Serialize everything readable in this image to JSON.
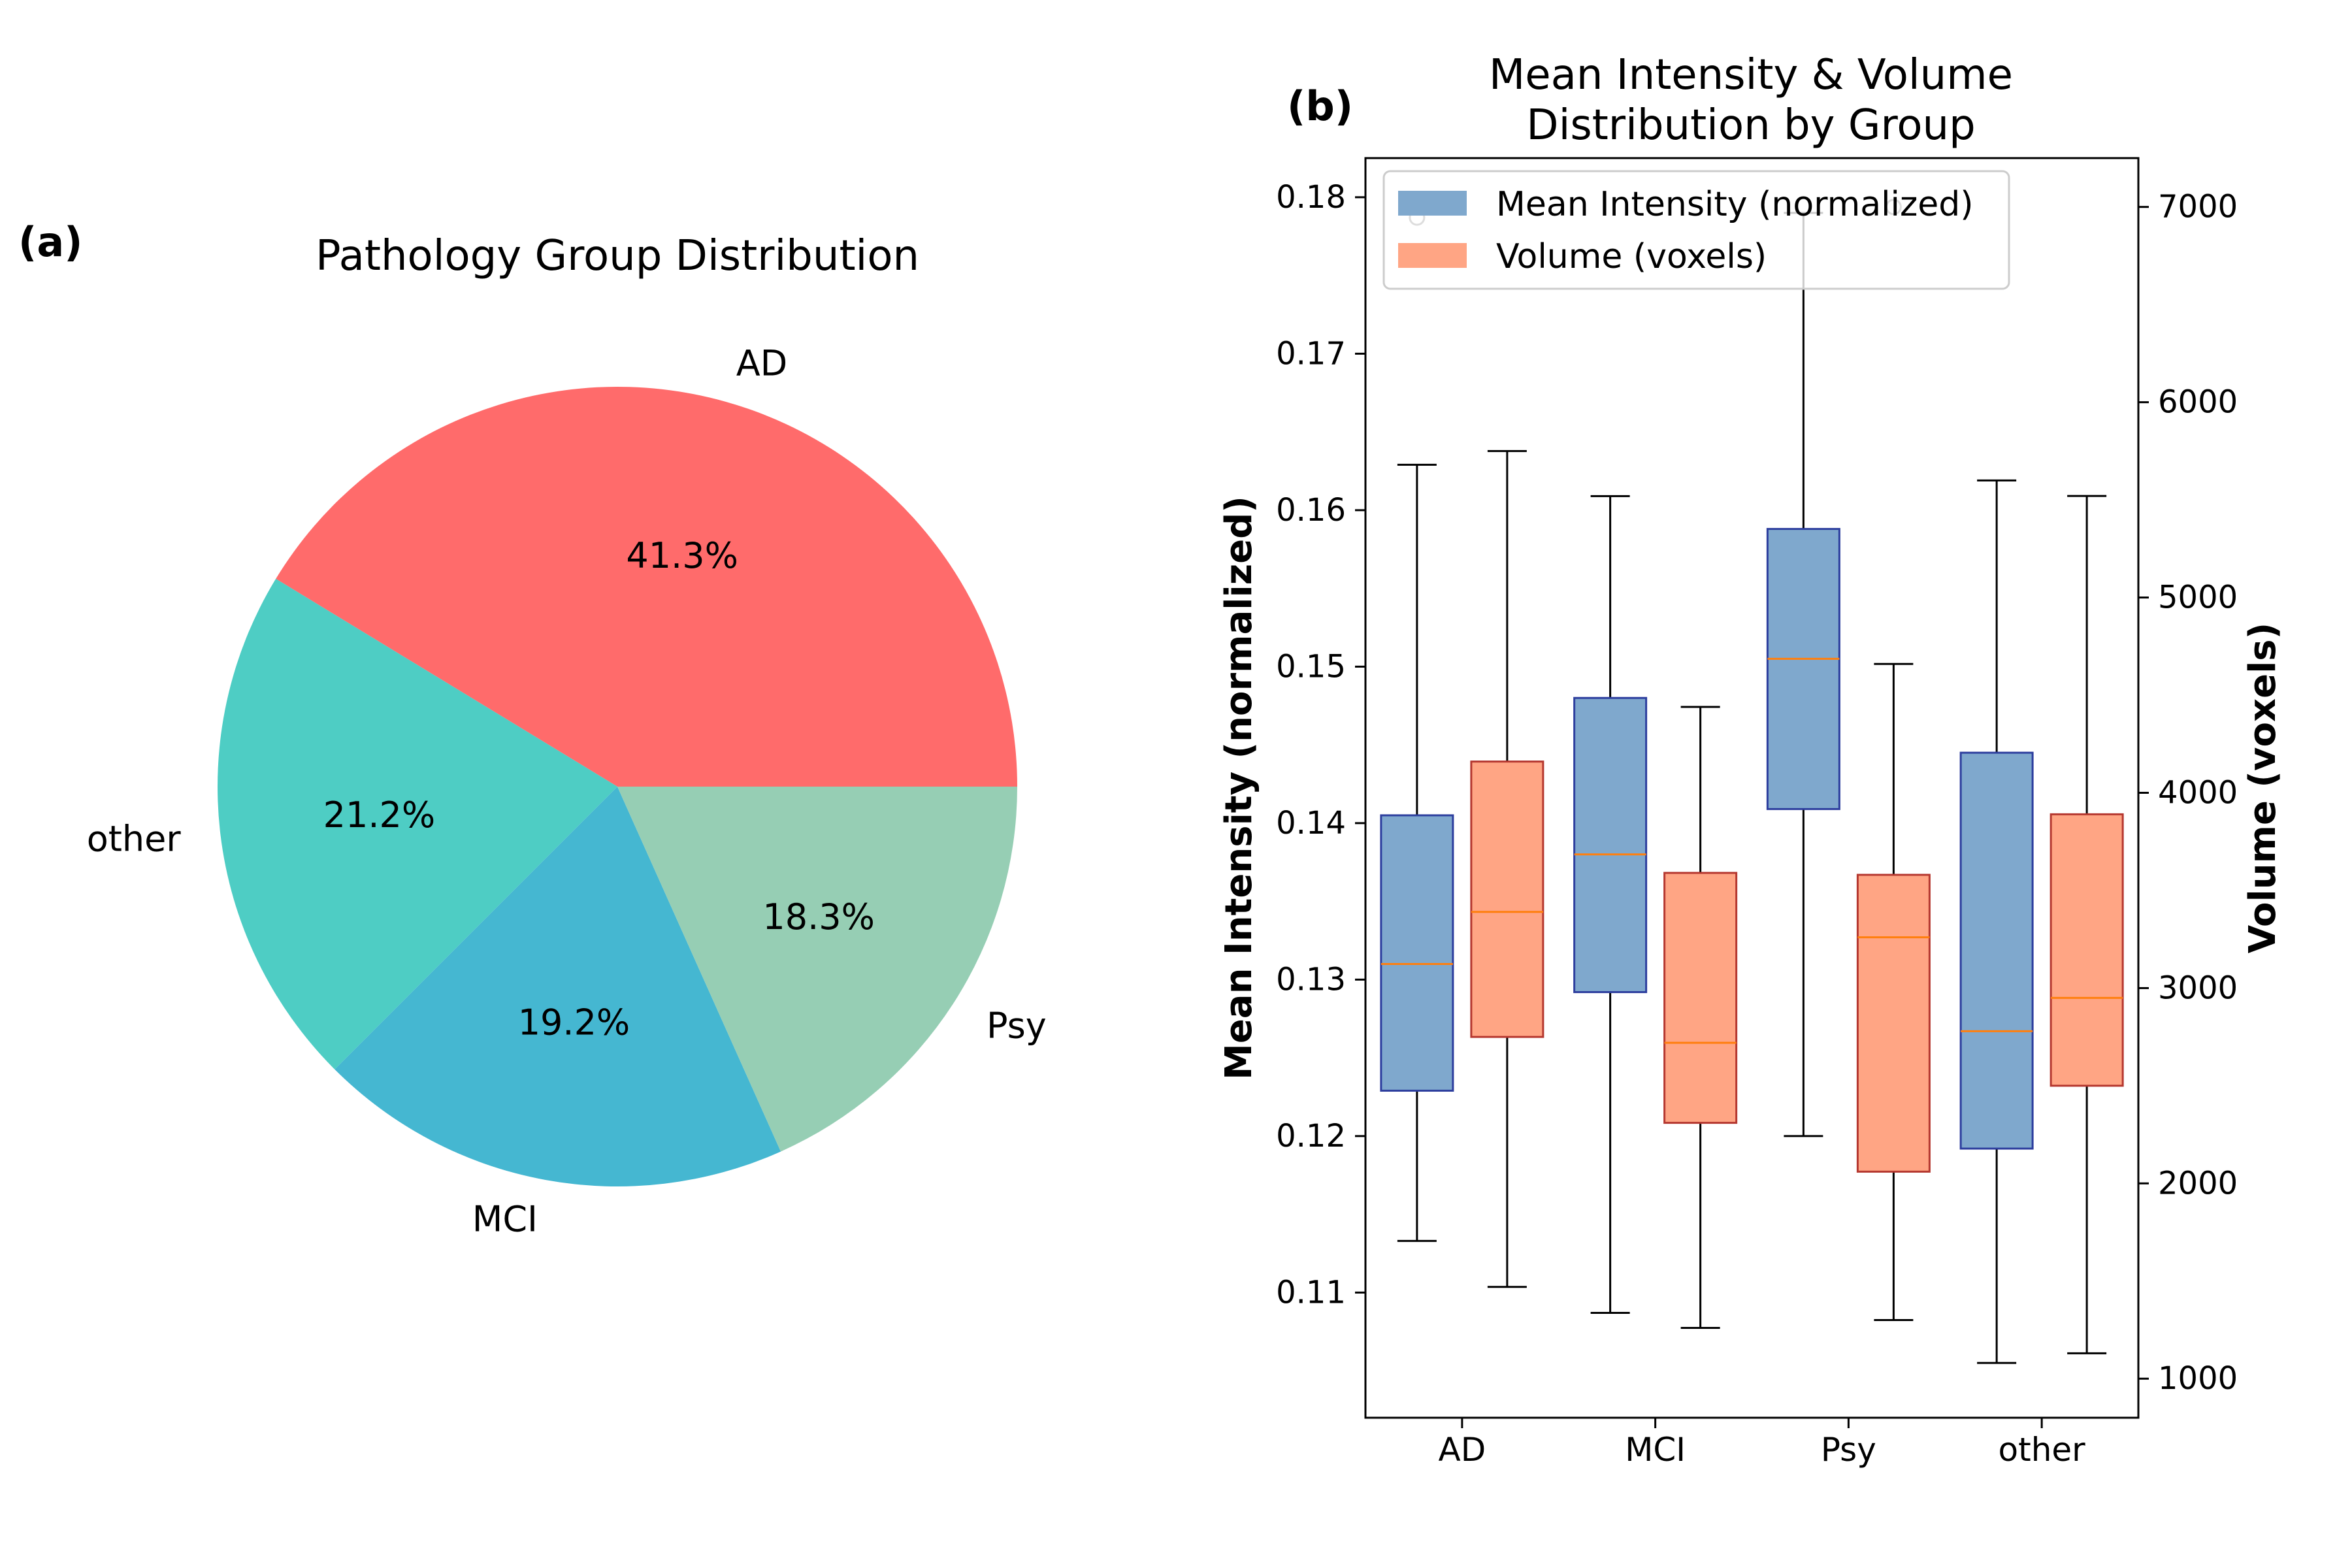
{
  "colors": {
    "pie": [
      "#ff6b6b",
      "#4ecdc4",
      "#45b7d1",
      "#96ceb4"
    ],
    "intensity_fill": "#7fa8cd",
    "intensity_edge": "#2d3e9e",
    "volume_fill": "#ffa584",
    "volume_edge": "#b5372f",
    "median": "#ff7f0e",
    "left_axis": "#4682b4",
    "right_axis": "#ff7f50"
  },
  "chart_data": [
    {
      "panel_label": "(a)",
      "type": "pie",
      "title": "Pathology Group Distribution",
      "labels": [
        "AD",
        "other",
        "MCI",
        "Psy"
      ],
      "values": [
        41.3,
        21.2,
        19.2,
        18.3
      ],
      "pct_labels": [
        "41.3%",
        "21.2%",
        "19.2%",
        "18.3%"
      ]
    },
    {
      "panel_label": "(b)",
      "type": "box",
      "title_lines": [
        "Mean Intensity & Volume",
        "Distribution by Group"
      ],
      "categories": [
        "AD",
        "MCI",
        "Psy",
        "other"
      ],
      "ylabel": "Mean Intensity (normalized)",
      "y2label": "Volume (voxels)",
      "ylim": [
        0.102,
        0.1825
      ],
      "y2lim": [
        800,
        7250
      ],
      "yticks": [
        0.11,
        0.12,
        0.13,
        0.14,
        0.15,
        0.16,
        0.17,
        0.18
      ],
      "yticklabels": [
        "0.11",
        "0.12",
        "0.13",
        "0.14",
        "0.15",
        "0.16",
        "0.17",
        "0.18"
      ],
      "y2ticks": [
        1000,
        2000,
        3000,
        4000,
        5000,
        6000,
        7000
      ],
      "y2ticklabels": [
        "1000",
        "2000",
        "3000",
        "4000",
        "5000",
        "6000",
        "7000"
      ],
      "legend": [
        "Mean Intensity (normalized)",
        "Volume (voxels)"
      ],
      "legend_position": "upper-left",
      "series": [
        {
          "name": "Mean Intensity (normalized)",
          "axis": "left",
          "boxes": [
            {
              "whisker_low": 0.1133,
              "q1": 0.1229,
              "median": 0.131,
              "q3": 0.1405,
              "whisker_high": 0.1629,
              "outliers": [
                0.1787
              ]
            },
            {
              "whisker_low": 0.1087,
              "q1": 0.1292,
              "median": 0.138,
              "q3": 0.148,
              "whisker_high": 0.1609,
              "outliers": []
            },
            {
              "whisker_low": 0.12,
              "q1": 0.1409,
              "median": 0.1505,
              "q3": 0.1588,
              "whisker_high": 0.179,
              "outliers": []
            },
            {
              "whisker_low": 0.1055,
              "q1": 0.1192,
              "median": 0.1267,
              "q3": 0.1445,
              "whisker_high": 0.1619,
              "outliers": []
            }
          ]
        },
        {
          "name": "Volume (voxels)",
          "axis": "right",
          "boxes": [
            {
              "whisker_low": 1470,
              "q1": 2750,
              "median": 3390,
              "q3": 4160,
              "whisker_high": 5750,
              "outliers": []
            },
            {
              "whisker_low": 1260,
              "q1": 2310,
              "median": 2720,
              "q3": 3590,
              "whisker_high": 4440,
              "outliers": []
            },
            {
              "whisker_low": 1300,
              "q1": 2060,
              "median": 3260,
              "q3": 3580,
              "whisker_high": 4660,
              "outliers": [
                7000
              ]
            },
            {
              "whisker_low": 1130,
              "q1": 2500,
              "median": 2950,
              "q3": 3890,
              "whisker_high": 5520,
              "outliers": []
            }
          ]
        }
      ]
    }
  ]
}
